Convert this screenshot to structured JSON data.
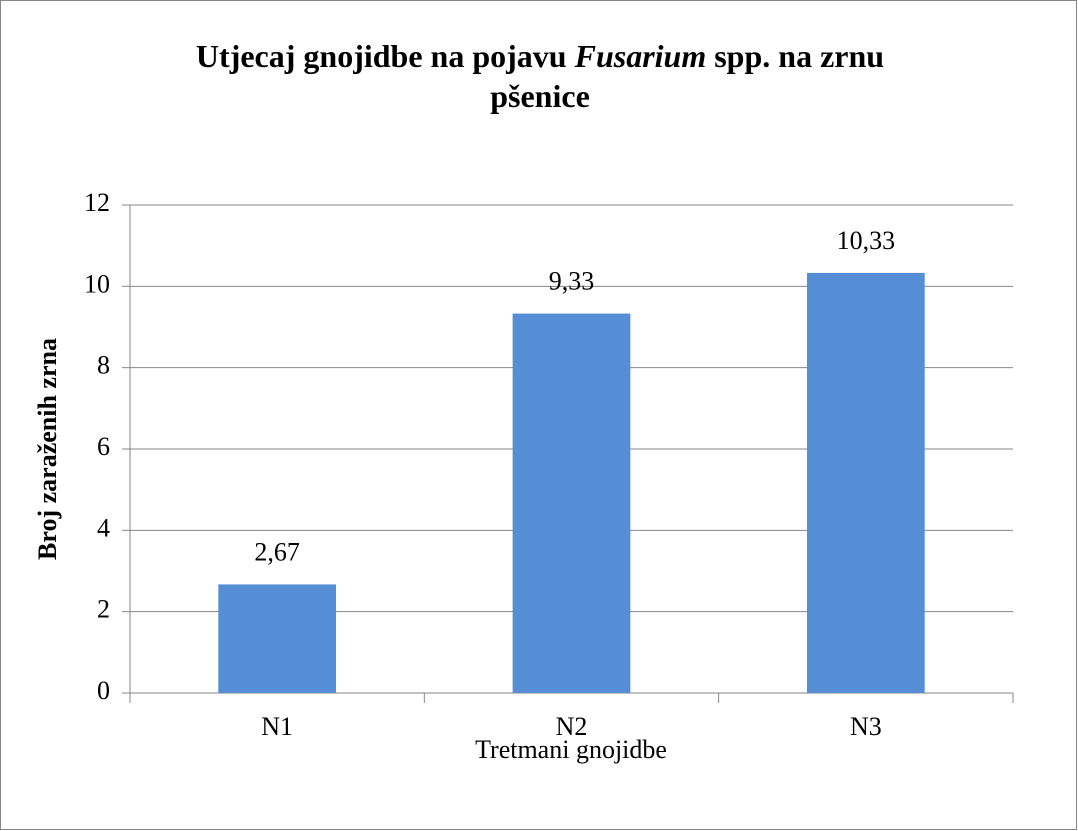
{
  "chart_data": {
    "type": "bar",
    "title": [
      [
        {
          "text": "Utjecaj gnojidbe na pojavu "
        },
        {
          "text": "Fusarium",
          "italic": true
        },
        {
          "text": " spp. na zrnu"
        }
      ],
      [
        {
          "text": "pšenice"
        }
      ]
    ],
    "x_label": "Tretmani gnojidbe",
    "y_label": "Broj zaraženih zrna",
    "categories": [
      "N1",
      "N2",
      "N3"
    ],
    "values": [
      2.67,
      9.33,
      10.33
    ],
    "value_labels": [
      "2,67",
      "9,33",
      "10,33"
    ],
    "color": "#558ed5",
    "ylim": [
      0,
      12
    ],
    "yticks": [
      0,
      2,
      4,
      6,
      8,
      10,
      12
    ],
    "grid": true
  }
}
